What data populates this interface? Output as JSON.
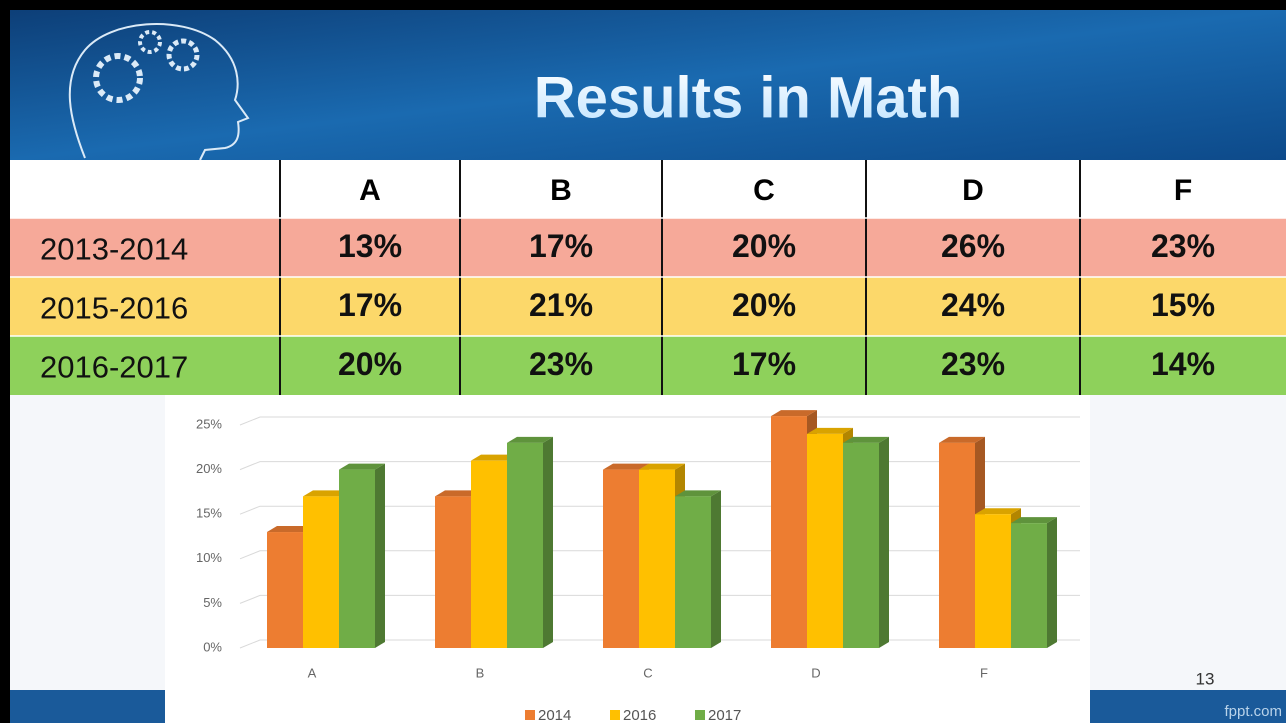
{
  "header": {
    "title": "Results in Math"
  },
  "table": {
    "columns": [
      "A",
      "B",
      "C",
      "D",
      "F"
    ],
    "rows": [
      {
        "label": "2013-2014",
        "cells": [
          "13%",
          "17%",
          "20%",
          "26%",
          "23%"
        ]
      },
      {
        "label": "2015-2016",
        "cells": [
          "17%",
          "21%",
          "20%",
          "24%",
          "15%"
        ]
      },
      {
        "label": "2016-2017",
        "cells": [
          "20%",
          "23%",
          "17%",
          "23%",
          "14%"
        ]
      }
    ]
  },
  "chart_data": {
    "type": "bar",
    "categories": [
      "A",
      "B",
      "C",
      "D",
      "F"
    ],
    "series": [
      {
        "name": "2014",
        "color": "#ed7d31",
        "values": [
          13,
          17,
          20,
          26,
          23
        ]
      },
      {
        "name": "2016",
        "color": "#ffc000",
        "values": [
          17,
          21,
          20,
          24,
          15
        ]
      },
      {
        "name": "2017",
        "color": "#70ad47",
        "values": [
          20,
          23,
          17,
          23,
          14
        ]
      }
    ],
    "ylim": [
      0,
      25
    ],
    "yticks": [
      {
        "value": 0,
        "label": "0%"
      },
      {
        "value": 5,
        "label": "5%"
      },
      {
        "value": 10,
        "label": "10%"
      },
      {
        "value": 15,
        "label": "15%"
      },
      {
        "value": 20,
        "label": "20%"
      },
      {
        "value": 25,
        "label": "25%"
      }
    ],
    "grid": true,
    "legend": "bottom"
  },
  "footer": {
    "page_number": "13",
    "site": "fppt.com"
  }
}
